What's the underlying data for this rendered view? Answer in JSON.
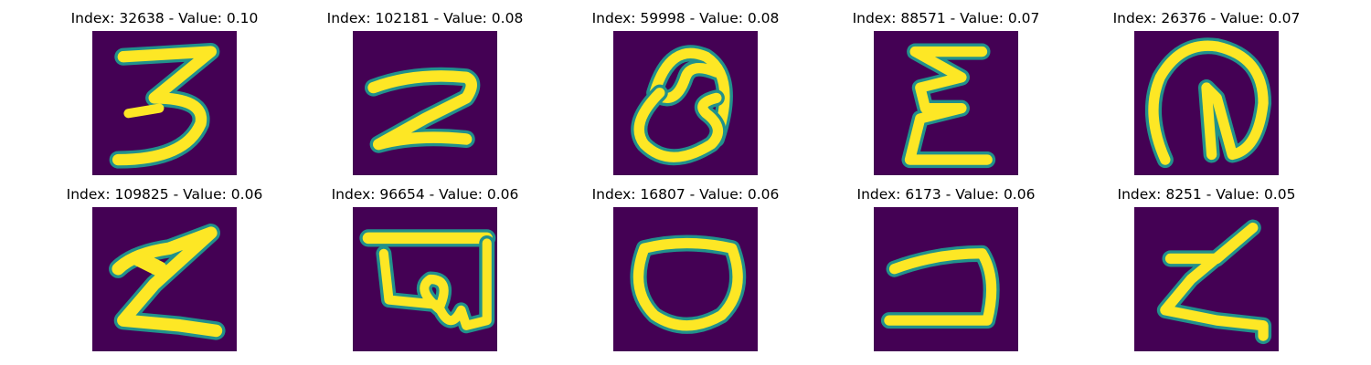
{
  "panels": [
    {
      "title": "Index: 32638 - Value: 0.10",
      "glyph": "digit-3-icon"
    },
    {
      "title": "Index: 102181 - Value: 0.08",
      "glyph": "digit-2-icon"
    },
    {
      "title": "Index: 59998 - Value: 0.08",
      "glyph": "letter-a-loop-icon"
    },
    {
      "title": "Index: 88571 - Value: 0.07",
      "glyph": "epsilon-icon"
    },
    {
      "title": "Index: 26376 - Value: 0.07",
      "glyph": "loop-n-icon"
    },
    {
      "title": "Index: 109825 - Value: 0.06",
      "glyph": "z-shape-icon"
    },
    {
      "title": "Index: 96654 - Value: 0.06",
      "glyph": "script-glyph-icon"
    },
    {
      "title": "Index: 16807 - Value: 0.06",
      "glyph": "letter-o-icon"
    },
    {
      "title": "Index: 6173 - Value: 0.06",
      "glyph": "hook-glyph-icon"
    },
    {
      "title": "Index: 8251 - Value: 0.05",
      "glyph": "z-shape-icon"
    }
  ],
  "colors": {
    "background": "#440154",
    "stroke": "#fde725",
    "edge": "#22a884"
  }
}
